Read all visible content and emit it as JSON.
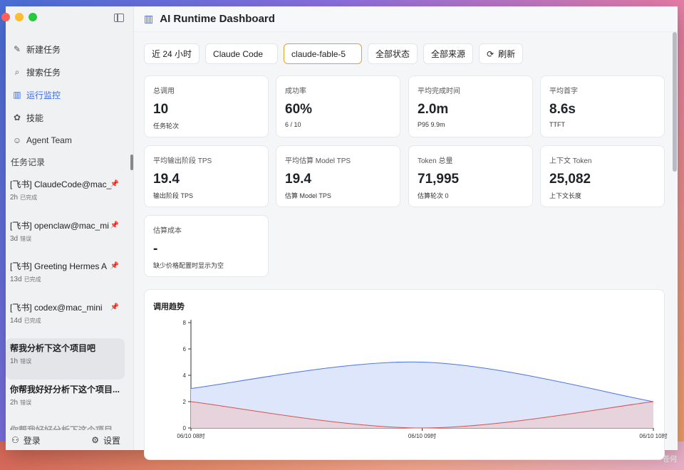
{
  "header": {
    "title": "AI Runtime Dashboard",
    "logo_icon": "bar-chart-icon"
  },
  "sidebar": {
    "nav": [
      {
        "label": "新建任务",
        "icon": "edit-icon"
      },
      {
        "label": "搜索任务",
        "icon": "search-icon"
      },
      {
        "label": "运行监控",
        "icon": "bar-chart-icon",
        "active": true
      },
      {
        "label": "技能",
        "icon": "puzzle-icon"
      },
      {
        "label": "Agent Team",
        "icon": "team-icon"
      }
    ],
    "section_title": "任务记录",
    "tasks": [
      {
        "title": "[飞书] ClaudeCode@mac_",
        "age": "2h",
        "status": "已完成",
        "pinned": true
      },
      {
        "title": "[飞书] openclaw@mac_mi",
        "age": "3d",
        "status": "错误",
        "pinned": true
      },
      {
        "title": "[飞书] Greeting Hermes A",
        "age": "13d",
        "status": "已完成",
        "pinned": true
      },
      {
        "title": "[飞书] codex@mac_mini",
        "age": "14d",
        "status": "已完成",
        "pinned": true
      },
      {
        "title": "帮我分析下这个项目吧",
        "age": "1h",
        "status": "错误",
        "selected": true
      },
      {
        "title": "你帮我好好分析下这个项目...",
        "age": "2h",
        "status": "错误"
      },
      {
        "title": "你帮我好好分析下这个项目",
        "age": "",
        "status": "",
        "faded": true
      }
    ],
    "footer": {
      "login": "登录",
      "settings": "设置"
    }
  },
  "filters": [
    {
      "label": "近 24 小时"
    },
    {
      "label": "Claude Code"
    },
    {
      "label": "claude-fable-5",
      "active": true
    },
    {
      "label": "全部状态"
    },
    {
      "label": "全部来源"
    },
    {
      "label": "刷新",
      "icon": "refresh-icon"
    }
  ],
  "metrics": [
    {
      "label": "总调用",
      "value": "10",
      "sub": "任务轮次"
    },
    {
      "label": "成功率",
      "value": "60%",
      "sub": "6 / 10"
    },
    {
      "label": "平均完成时间",
      "value": "2.0m",
      "sub": "P95 9.9m"
    },
    {
      "label": "平均首字",
      "value": "8.6s",
      "sub": "TTFT"
    },
    {
      "label": "平均输出阶段 TPS",
      "value": "19.4",
      "sub": "输出阶段 TPS"
    },
    {
      "label": "平均估算 Model TPS",
      "value": "19.4",
      "sub": "估算 Model TPS"
    },
    {
      "label": "Token 总量",
      "value": "71,995",
      "sub": "估算轮次 0"
    },
    {
      "label": "上下文 Token",
      "value": "25,082",
      "sub": "上下文长度"
    },
    {
      "label": "估算成本",
      "value": "-",
      "sub": "缺少价格配置时显示为空"
    }
  ],
  "chart_data": {
    "type": "area",
    "title": "调用趋势",
    "x": [
      "06/10 08时",
      "06/10 09时",
      "06/10 10时"
    ],
    "ylim": [
      0,
      8
    ],
    "yticks": [
      0,
      2,
      4,
      6,
      8
    ],
    "series": [
      {
        "values": [
          3,
          5,
          2
        ],
        "color": "#4a74e8",
        "fill": "#dde6fb"
      },
      {
        "values": [
          2,
          0,
          2
        ],
        "color": "#d9534f",
        "fill": "#e8cfd6"
      }
    ]
  }
}
